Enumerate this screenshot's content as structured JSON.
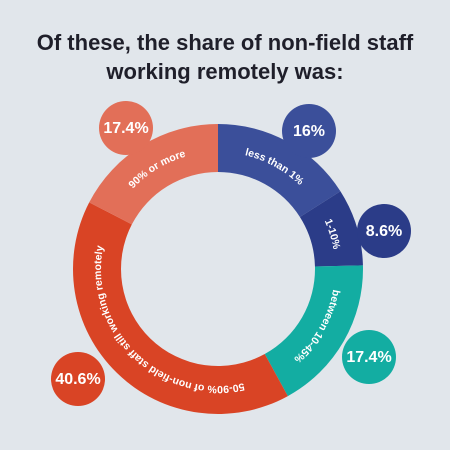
{
  "title": {
    "line1": "Of these, the share of non-field staff",
    "line2": "working remotely was:"
  },
  "chart_data": {
    "type": "donut",
    "series": [
      {
        "label": "less than 1%",
        "value": 16,
        "display": "16%",
        "color": "#3b4f9a"
      },
      {
        "label": "1-10%",
        "value": 8.6,
        "display": "8.6%",
        "color": "#2b3c88"
      },
      {
        "label": "between 10-45%",
        "value": 17.4,
        "display": "17.4%",
        "color": "#13ada2"
      },
      {
        "label": "50-90% of non-field staff still working remotely",
        "value": 40.6,
        "display": "40.6%",
        "color": "#d94425"
      },
      {
        "label": "90% or more",
        "value": 17.4,
        "display": "17.4%",
        "color": "#e26f58"
      }
    ]
  }
}
